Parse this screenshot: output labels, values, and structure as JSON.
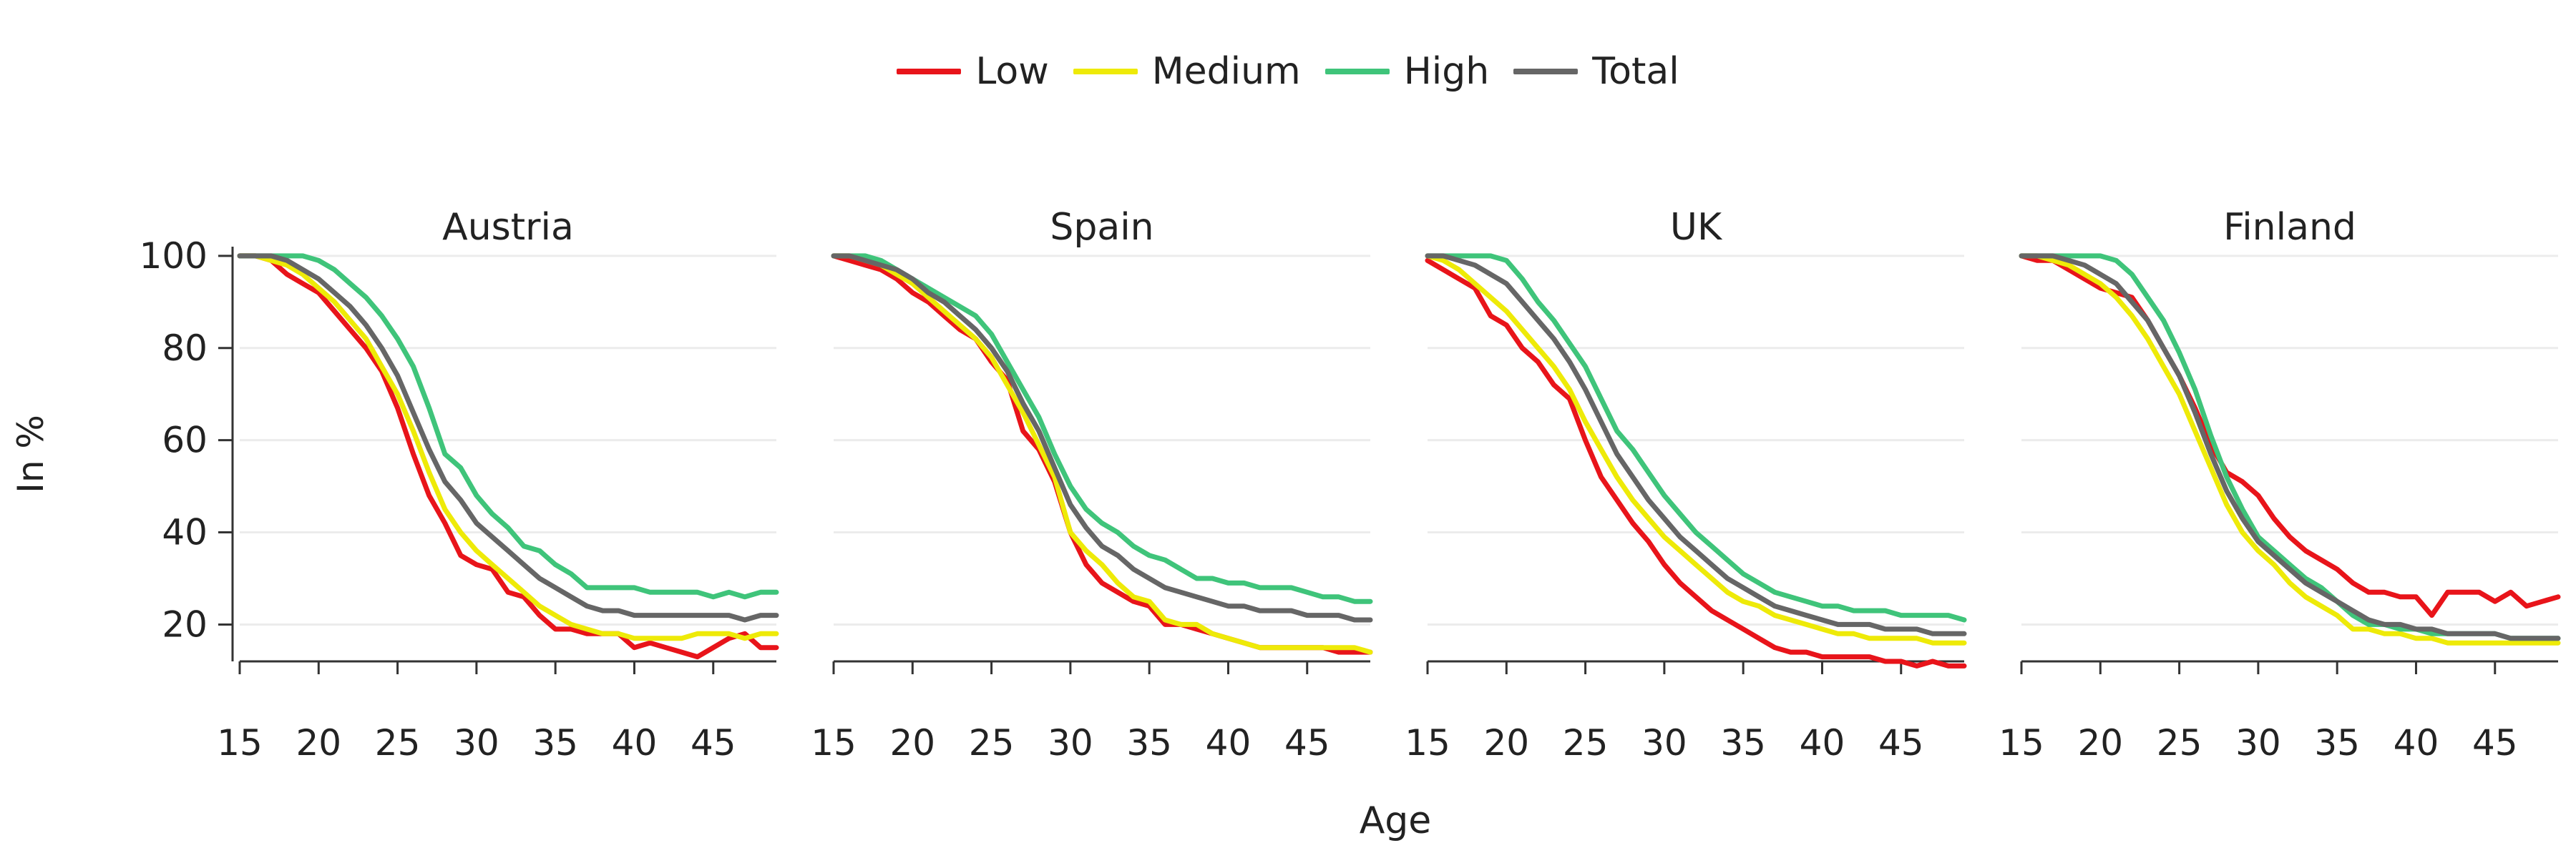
{
  "legend": [
    {
      "label": "Low",
      "color": "#e8141a"
    },
    {
      "label": "Medium",
      "color": "#eeea08"
    },
    {
      "label": "High",
      "color": "#3fc47a"
    },
    {
      "label": "Total",
      "color": "#666666"
    }
  ],
  "xlabel": "Age",
  "ylabel": "In %",
  "chart_data": {
    "type": "line",
    "xlabel": "Age",
    "ylabel": "In %",
    "xlim": [
      15,
      49
    ],
    "ylim": [
      12,
      102
    ],
    "xticks": [
      15,
      20,
      25,
      30,
      35,
      40,
      45
    ],
    "yticks": [
      20,
      40,
      60,
      80,
      100
    ],
    "grid": "horizontal",
    "legend_position": "top",
    "x": [
      15,
      16,
      17,
      18,
      19,
      20,
      21,
      22,
      23,
      24,
      25,
      26,
      27,
      28,
      29,
      30,
      31,
      32,
      33,
      34,
      35,
      36,
      37,
      38,
      39,
      40,
      41,
      42,
      43,
      44,
      45,
      46,
      47,
      48,
      49
    ],
    "panels": [
      {
        "title": "Austria",
        "series": [
          {
            "name": "Low",
            "values": [
              100,
              100,
              99,
              96,
              94,
              92,
              88,
              84,
              80,
              75,
              67,
              57,
              48,
              42,
              35,
              33,
              32,
              27,
              26,
              22,
              19,
              19,
              18,
              18,
              18,
              15,
              16,
              15,
              14,
              13,
              15,
              17,
              18,
              15,
              15
            ]
          },
          {
            "name": "Medium",
            "values": [
              100,
              100,
              99,
              98,
              96,
              93,
              90,
              86,
              82,
              76,
              70,
              62,
              53,
              45,
              40,
              36,
              33,
              30,
              27,
              24,
              22,
              20,
              19,
              18,
              18,
              17,
              17,
              17,
              17,
              18,
              18,
              18,
              17,
              18,
              18
            ]
          },
          {
            "name": "High",
            "values": [
              100,
              100,
              100,
              100,
              100,
              99,
              97,
              94,
              91,
              87,
              82,
              76,
              67,
              57,
              54,
              48,
              44,
              41,
              37,
              36,
              33,
              31,
              28,
              28,
              28,
              28,
              27,
              27,
              27,
              27,
              26,
              27,
              26,
              27,
              27
            ]
          },
          {
            "name": "Total",
            "values": [
              100,
              100,
              100,
              99,
              97,
              95,
              92,
              89,
              85,
              80,
              74,
              66,
              58,
              51,
              47,
              42,
              39,
              36,
              33,
              30,
              28,
              26,
              24,
              23,
              23,
              22,
              22,
              22,
              22,
              22,
              22,
              22,
              21,
              22,
              22
            ]
          }
        ]
      },
      {
        "title": "Spain",
        "series": [
          {
            "name": "Low",
            "values": [
              100,
              99,
              98,
              97,
              95,
              92,
              90,
              87,
              84,
              82,
              77,
              73,
              62,
              58,
              51,
              40,
              33,
              29,
              27,
              25,
              24,
              20,
              20,
              19,
              18,
              17,
              16,
              15,
              15,
              15,
              15,
              15,
              14,
              14,
              14
            ]
          },
          {
            "name": "Medium",
            "values": [
              100,
              100,
              99,
              98,
              96,
              94,
              91,
              88,
              85,
              82,
              78,
              72,
              66,
              59,
              52,
              40,
              36,
              33,
              29,
              26,
              25,
              21,
              20,
              20,
              18,
              17,
              16,
              15,
              15,
              15,
              15,
              15,
              15,
              15,
              14
            ]
          },
          {
            "name": "High",
            "values": [
              100,
              100,
              100,
              99,
              97,
              95,
              93,
              91,
              89,
              87,
              83,
              77,
              71,
              65,
              57,
              50,
              45,
              42,
              40,
              37,
              35,
              34,
              32,
              30,
              30,
              29,
              29,
              28,
              28,
              28,
              27,
              26,
              26,
              25,
              25
            ]
          },
          {
            "name": "Total",
            "values": [
              100,
              100,
              99,
              98,
              97,
              95,
              92,
              90,
              87,
              84,
              80,
              75,
              68,
              62,
              54,
              46,
              41,
              37,
              35,
              32,
              30,
              28,
              27,
              26,
              25,
              24,
              24,
              23,
              23,
              23,
              22,
              22,
              22,
              21,
              21
            ]
          }
        ]
      },
      {
        "title": "UK",
        "series": [
          {
            "name": "Low",
            "values": [
              99,
              97,
              95,
              93,
              87,
              85,
              80,
              77,
              72,
              69,
              60,
              52,
              47,
              42,
              38,
              33,
              29,
              26,
              23,
              21,
              19,
              17,
              15,
              14,
              14,
              13,
              13,
              13,
              13,
              12,
              12,
              11,
              12,
              11,
              11
            ]
          },
          {
            "name": "Medium",
            "values": [
              100,
              99,
              97,
              94,
              91,
              88,
              84,
              80,
              76,
              71,
              64,
              58,
              52,
              47,
              43,
              39,
              36,
              33,
              30,
              27,
              25,
              24,
              22,
              21,
              20,
              19,
              18,
              18,
              17,
              17,
              17,
              17,
              16,
              16,
              16
            ]
          },
          {
            "name": "High",
            "values": [
              100,
              100,
              100,
              100,
              100,
              99,
              95,
              90,
              86,
              81,
              76,
              69,
              62,
              58,
              53,
              48,
              44,
              40,
              37,
              34,
              31,
              29,
              27,
              26,
              25,
              24,
              24,
              23,
              23,
              23,
              22,
              22,
              22,
              22,
              21
            ]
          },
          {
            "name": "Total",
            "values": [
              100,
              100,
              99,
              98,
              96,
              94,
              90,
              86,
              82,
              77,
              71,
              64,
              57,
              52,
              47,
              43,
              39,
              36,
              33,
              30,
              28,
              26,
              24,
              23,
              22,
              21,
              20,
              20,
              20,
              19,
              19,
              19,
              18,
              18,
              18
            ]
          }
        ]
      },
      {
        "title": "Finland",
        "series": [
          {
            "name": "Low",
            "values": [
              100,
              99,
              99,
              97,
              95,
              93,
              92,
              91,
              86,
              80,
              74,
              67,
              59,
              53,
              51,
              48,
              43,
              39,
              36,
              34,
              32,
              29,
              27,
              27,
              26,
              26,
              22,
              27,
              27,
              27,
              25,
              27,
              24,
              25,
              26
            ]
          },
          {
            "name": "Medium",
            "values": [
              100,
              100,
              99,
              98,
              96,
              94,
              91,
              87,
              82,
              76,
              70,
              62,
              54,
              46,
              40,
              36,
              33,
              29,
              26,
              24,
              22,
              19,
              19,
              18,
              18,
              17,
              17,
              16,
              16,
              16,
              16,
              16,
              16,
              16,
              16
            ]
          },
          {
            "name": "High",
            "values": [
              100,
              100,
              100,
              100,
              100,
              100,
              99,
              96,
              91,
              86,
              79,
              71,
              61,
              52,
              45,
              39,
              36,
              33,
              30,
              28,
              25,
              22,
              20,
              20,
              19,
              19,
              18,
              18,
              18,
              18,
              18,
              17,
              17,
              17,
              17
            ]
          },
          {
            "name": "Total",
            "values": [
              100,
              100,
              100,
              99,
              98,
              96,
              94,
              90,
              86,
              80,
              74,
              66,
              57,
              49,
              43,
              38,
              35,
              32,
              29,
              27,
              25,
              23,
              21,
              20,
              20,
              19,
              19,
              18,
              18,
              18,
              18,
              17,
              17,
              17,
              17
            ]
          }
        ]
      }
    ]
  }
}
